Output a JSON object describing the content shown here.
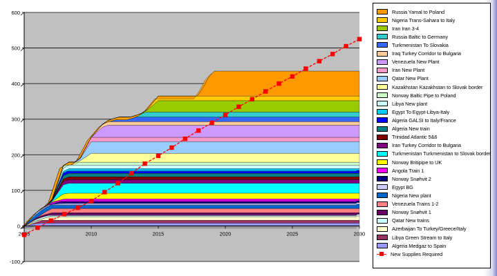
{
  "chart_data": {
    "type": "area",
    "stacked": true,
    "render": "3d",
    "x_range": [
      2005,
      2030
    ],
    "ylim": [
      -100,
      600
    ],
    "x_ticks": [
      "2005",
      "2010",
      "2015",
      "2020",
      "2025",
      "2030"
    ],
    "y_ticks": [
      "-100",
      "0",
      "100",
      "200",
      "300",
      "400",
      "500",
      "600"
    ],
    "grid": "horizontal",
    "legend_position": "right",
    "series": [
      {
        "name": "Algeria Medgaz to Spain",
        "color": "#9999ff",
        "points": [
          [
            2006,
            8
          ],
          [
            2030,
            8
          ]
        ]
      },
      {
        "name": "Libya Green Stream to Italy",
        "color": "#993366",
        "points": [
          [
            2006,
            8
          ],
          [
            2030,
            8
          ]
        ]
      },
      {
        "name": "Azerbaijan To Turkey/Greece/Italy",
        "color": "#ffffcc",
        "points": [
          [
            2007,
            12
          ],
          [
            2030,
            12
          ]
        ]
      },
      {
        "name": "Qatar New trains",
        "color": "#ccffff",
        "points": [
          [
            2006,
            5
          ],
          [
            2030,
            5
          ]
        ]
      },
      {
        "name": "Norway Snøhvit 1",
        "color": "#660066",
        "points": [
          [
            2006,
            4
          ],
          [
            2030,
            4
          ]
        ]
      },
      {
        "name": "Venezuela Trains 1-2",
        "color": "#ff8080",
        "points": [
          [
            2007,
            12
          ],
          [
            2030,
            12
          ]
        ]
      },
      {
        "name": "Nigeria New plant",
        "color": "#0066cc",
        "points": [
          [
            2006,
            12
          ],
          [
            2030,
            12
          ]
        ]
      },
      {
        "name": "Egypt BG",
        "color": "#ccccff",
        "points": [
          [
            2006,
            5
          ],
          [
            2030,
            5
          ]
        ]
      },
      {
        "name": "Norway Snøhvit 2",
        "color": "#000080",
        "points": [
          [
            2008,
            5
          ],
          [
            2030,
            5
          ]
        ]
      },
      {
        "name": "Angola Train 1",
        "color": "#ff00ff",
        "points": [
          [
            2008,
            5
          ],
          [
            2030,
            5
          ]
        ]
      },
      {
        "name": "Norway Britipipe to UK",
        "color": "#ffff00",
        "points": [
          [
            2008,
            16
          ],
          [
            2030,
            16
          ]
        ]
      },
      {
        "name": "Turkmenistan Turkmenistan to Slovak border",
        "color": "#00ffff",
        "points": [
          [
            2008,
            28
          ],
          [
            2030,
            28
          ]
        ]
      },
      {
        "name": "Iran Turkey Corridor to Bulgaria",
        "color": "#800080",
        "points": [
          [
            2008,
            10
          ],
          [
            2030,
            10
          ]
        ]
      },
      {
        "name": "Trinidad Atlantic 5&6",
        "color": "#800000",
        "points": [
          [
            2008,
            8
          ],
          [
            2030,
            8
          ]
        ]
      },
      {
        "name": "Algeria New train",
        "color": "#008080",
        "points": [
          [
            2008,
            10
          ],
          [
            2030,
            10
          ]
        ]
      },
      {
        "name": "Algeria GALSI to Italy/France",
        "color": "#0000ff",
        "points": [
          [
            2008,
            8
          ],
          [
            2030,
            8
          ]
        ]
      },
      {
        "name": "Egypt To Egypt-Libya-Italy",
        "color": "#00ccff",
        "points": [
          [
            2008,
            5
          ],
          [
            2030,
            5
          ]
        ]
      },
      {
        "name": "Libya New plant",
        "color": "#ccffff",
        "points": [
          [
            2008,
            10
          ],
          [
            2030,
            10
          ]
        ]
      },
      {
        "name": "Norway Baltic Pipe to Poland",
        "color": "#ccffcc",
        "points": [
          [
            2008,
            8
          ],
          [
            2030,
            8
          ]
        ]
      },
      {
        "name": "Kazakhstan Kazakhstan to Slovak border",
        "color": "#ffff99",
        "points": [
          [
            2010,
            25
          ],
          [
            2030,
            25
          ]
        ]
      },
      {
        "name": "Qatar New Plant",
        "color": "#99ccff",
        "points": [
          [
            2010,
            33
          ],
          [
            2030,
            33
          ]
        ]
      },
      {
        "name": "Iran New Plant",
        "color": "#ff99cc",
        "points": [
          [
            2010,
            12
          ],
          [
            2030,
            12
          ]
        ]
      },
      {
        "name": "Venezuela New Plant",
        "color": "#cc99ff",
        "points": [
          [
            2011,
            34
          ],
          [
            2030,
            34
          ]
        ]
      },
      {
        "name": "Iraq Turkey Corridor to Bulgaria",
        "color": "#ffcc99",
        "points": [
          [
            2011,
            10
          ],
          [
            2030,
            10
          ]
        ]
      },
      {
        "name": "Turkmenistan To Slovakia",
        "color": "#3366ff",
        "points": [
          [
            2012,
            13
          ],
          [
            2030,
            13
          ]
        ]
      },
      {
        "name": "Russia Baltic to Germany",
        "color": "#33cccc",
        "points": [
          [
            2014,
            14
          ],
          [
            2030,
            14
          ]
        ]
      },
      {
        "name": "Iran Iran 3-4",
        "color": "#99cc00",
        "points": [
          [
            2015,
            32
          ],
          [
            2030,
            32
          ]
        ]
      },
      {
        "name": "Nigeria Trans-Sahara to Italy",
        "color": "#ffcc00",
        "points": [
          [
            2015,
            13
          ],
          [
            2030,
            13
          ]
        ]
      },
      {
        "name": "Russia Yamal to Poland",
        "color": "#ff9900",
        "points": [
          [
            2019,
            70
          ],
          [
            2030,
            70
          ]
        ]
      },
      {
        "name": "New Supplies Required",
        "color": "#ff0000",
        "kind": "line",
        "x": [
          2005,
          2006,
          2007,
          2008,
          2009,
          2010,
          2011,
          2012,
          2013,
          2014,
          2015,
          2016,
          2017,
          2018,
          2019,
          2020,
          2021,
          2022,
          2023,
          2024,
          2025,
          2026,
          2027,
          2028,
          2029,
          2030
        ],
        "y": [
          -25,
          -5,
          15,
          33,
          51,
          70,
          95,
          120,
          148,
          175,
          197,
          220,
          245,
          268,
          290,
          312,
          335,
          356,
          378,
          400,
          420,
          442,
          463,
          483,
          505,
          525
        ]
      }
    ]
  }
}
